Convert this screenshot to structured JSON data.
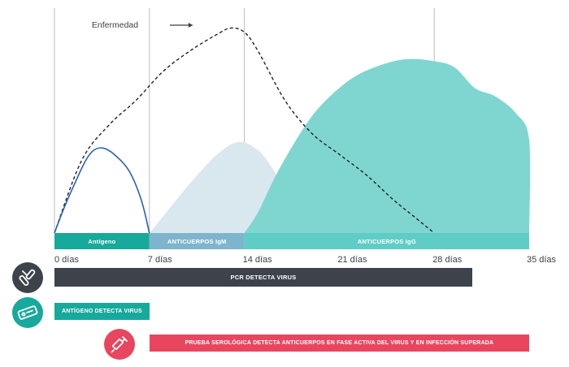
{
  "chart_data": {
    "type": "area",
    "x_unit": "días",
    "xlim": [
      0,
      35
    ],
    "x_ticks": [
      {
        "value": 0,
        "label": "0 días"
      },
      {
        "value": 7,
        "label": "7 días"
      },
      {
        "value": 14,
        "label": "14 días"
      },
      {
        "value": 21,
        "label": "21 días"
      },
      {
        "value": 28,
        "label": "28 días"
      },
      {
        "value": 35,
        "label": "35 días"
      }
    ],
    "vlines": [
      0,
      7,
      14,
      28
    ],
    "ylim": [
      0,
      100
    ],
    "series": [
      {
        "name": "Enfermedad",
        "style": "dashed-line",
        "color": "#222222",
        "points": [
          [
            0,
            0
          ],
          [
            2,
            35
          ],
          [
            4,
            52
          ],
          [
            6,
            64
          ],
          [
            8,
            78
          ],
          [
            10,
            88
          ],
          [
            12,
            96
          ],
          [
            13,
            99
          ],
          [
            14,
            97
          ],
          [
            15,
            88
          ],
          [
            17,
            64
          ],
          [
            19,
            48
          ],
          [
            21,
            38
          ],
          [
            23,
            28
          ],
          [
            25,
            16
          ],
          [
            26.5,
            8
          ],
          [
            28,
            0
          ]
        ]
      },
      {
        "style": "line",
        "color": "#2b5fb5",
        "points": [
          [
            0,
            0
          ],
          [
            0.7,
            12
          ],
          [
            1.5,
            24
          ],
          [
            2.3,
            35
          ],
          [
            2.9,
            40
          ],
          [
            3.6,
            41
          ],
          [
            4.4,
            38
          ],
          [
            5.5,
            30
          ],
          [
            6.4,
            16
          ],
          [
            7,
            0
          ]
        ]
      },
      {
        "style": "area",
        "color": "#d9e8ef",
        "points": [
          [
            7,
            0
          ],
          [
            8,
            8
          ],
          [
            10,
            24
          ],
          [
            12,
            38
          ],
          [
            13.6,
            44
          ],
          [
            15,
            40
          ],
          [
            16,
            32
          ],
          [
            18,
            12
          ],
          [
            21,
            0
          ]
        ]
      },
      {
        "style": "area",
        "color": "#7fd6d0",
        "points": [
          [
            14,
            0
          ],
          [
            15,
            10
          ],
          [
            16.5,
            30
          ],
          [
            18.5,
            52
          ],
          [
            20,
            64
          ],
          [
            22,
            75
          ],
          [
            24,
            81
          ],
          [
            26,
            84
          ],
          [
            28,
            83
          ],
          [
            29.5,
            80
          ],
          [
            31,
            70
          ],
          [
            32.5,
            66
          ],
          [
            34,
            58
          ],
          [
            35,
            45
          ],
          [
            35,
            0
          ]
        ]
      }
    ],
    "bands": [
      {
        "label": "Antígeno",
        "from": 0,
        "to": 7,
        "color": "#17a99b"
      },
      {
        "label": "ANTICUERPOS IgM",
        "from": 7,
        "to": 14,
        "color": "#7fb5cc"
      },
      {
        "label": "ANTICUERPOS IgG",
        "from": 14,
        "to": 35,
        "color": "#5fcdc5"
      }
    ],
    "annotation": {
      "text": "Enfermedad"
    }
  },
  "bars": [
    {
      "label": "PCR DETECTA VIRUS",
      "from": 0,
      "to": 30.8,
      "color": "#3d434b",
      "icon": "test-tube-icon",
      "icon_color": "#3d434b"
    },
    {
      "label": "ANTÍGENO DETECTA VIRUS",
      "from": 0,
      "to": 7,
      "color": "#17a99b",
      "icon": "rapid-test-icon",
      "icon_color": "#17a99b"
    },
    {
      "label": "PRUEBA SEROLÓGICA DETECTA ANTICUERPOS EN FASE ACTIVA DEL VIRUS Y EN INFECCIÓN SUPERADA",
      "from": 7,
      "to": 35,
      "color": "#e8465f",
      "icon": "syringe-icon",
      "icon_color": "#e8465f"
    }
  ]
}
